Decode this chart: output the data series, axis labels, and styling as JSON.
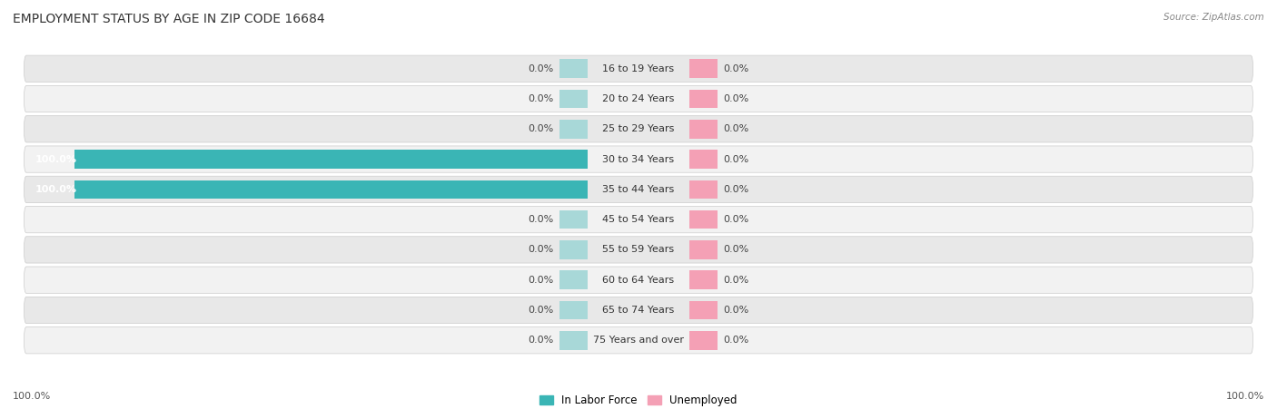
{
  "title": "EMPLOYMENT STATUS BY AGE IN ZIP CODE 16684",
  "source": "Source: ZipAtlas.com",
  "categories": [
    "16 to 19 Years",
    "20 to 24 Years",
    "25 to 29 Years",
    "30 to 34 Years",
    "35 to 44 Years",
    "45 to 54 Years",
    "55 to 59 Years",
    "60 to 64 Years",
    "65 to 74 Years",
    "75 Years and over"
  ],
  "in_labor_force": [
    0.0,
    0.0,
    0.0,
    100.0,
    100.0,
    0.0,
    0.0,
    0.0,
    0.0,
    0.0
  ],
  "unemployed": [
    0.0,
    0.0,
    0.0,
    0.0,
    0.0,
    0.0,
    0.0,
    0.0,
    0.0,
    0.0
  ],
  "labor_color": "#3ab5b5",
  "labor_color_faint": "#a8d8d8",
  "unemployed_color": "#f4a0b5",
  "unemployed_color_faint": "#f4a0b5",
  "row_color_dark": "#e8e8e8",
  "row_color_light": "#f2f2f2",
  "title_fontsize": 10,
  "label_fontsize": 8,
  "cat_fontsize": 8,
  "axis_max": 100.0,
  "stub_size": 5.0,
  "legend_labor": "In Labor Force",
  "legend_unemployed": "Unemployed",
  "bottom_left_label": "100.0%",
  "bottom_right_label": "100.0%"
}
